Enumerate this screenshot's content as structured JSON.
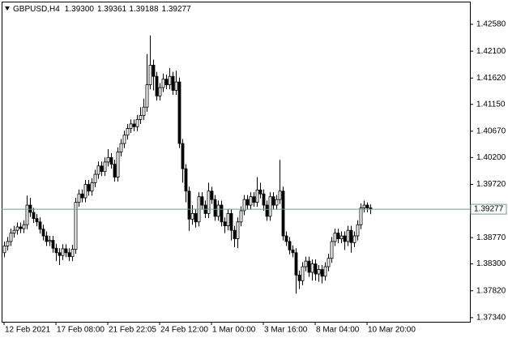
{
  "chart_data": {
    "type": "candlestick",
    "symbol": "GBPUSD,H4",
    "ohlc_labels": [
      "1.39300",
      "1.39361",
      "1.39188",
      "1.39277"
    ],
    "current_price": 1.39277,
    "current_price_color": "#7a9a8a",
    "bull_color": "#ffffff",
    "bear_color": "#000000",
    "wick_color": "#000000",
    "ylim": [
      1.37266,
      1.42985
    ],
    "yticks": [
      {
        "value": 1.4258,
        "label": "1.42580"
      },
      {
        "value": 1.421,
        "label": "1.42100"
      },
      {
        "value": 1.4162,
        "label": "1.41620"
      },
      {
        "value": 1.4115,
        "label": "1.41150"
      },
      {
        "value": 1.4067,
        "label": "1.40670"
      },
      {
        "value": 1.402,
        "label": "1.40200"
      },
      {
        "value": 1.3972,
        "label": "1.39720"
      },
      {
        "value": 1.3877,
        "label": "1.38770"
      },
      {
        "value": 1.383,
        "label": "1.38300"
      },
      {
        "value": 1.3782,
        "label": "1.37820"
      },
      {
        "value": 1.3734,
        "label": "1.37340"
      }
    ],
    "xlim": [
      -0.75,
      143.75
    ],
    "xticks": [
      {
        "value": 0,
        "label": "12 Feb 2021"
      },
      {
        "value": 16,
        "label": "17 Feb 08:00"
      },
      {
        "value": 32,
        "label": "21 Feb 22:05"
      },
      {
        "value": 48,
        "label": "24 Feb 12:00"
      },
      {
        "value": 64,
        "label": "1 Mar 00:00"
      },
      {
        "value": 80,
        "label": "3 Mar 16:00"
      },
      {
        "value": 96,
        "label": "8 Mar 04:00"
      },
      {
        "value": 112,
        "label": "10 Mar 20:00"
      }
    ],
    "open": [
      1.385,
      1.3862,
      1.387,
      1.3885,
      1.389,
      1.3896,
      1.3893,
      1.39,
      1.3935,
      1.3922,
      1.3911,
      1.3905,
      1.3892,
      1.388,
      1.387,
      1.3872,
      1.3858,
      1.385,
      1.3845,
      1.3857,
      1.385,
      1.3843,
      1.3856,
      1.394,
      1.3955,
      1.3948,
      1.3972,
      1.396,
      1.3975,
      1.399,
      1.4005,
      1.3995,
      1.4012,
      1.402,
      1.4008,
      1.3985,
      1.403,
      1.4045,
      1.406,
      1.4072,
      1.408,
      1.4075,
      1.4088,
      1.4095,
      1.411,
      1.415,
      1.4185,
      1.4165,
      1.413,
      1.4145,
      1.416,
      1.415,
      1.4165,
      1.414,
      1.4155,
      1.4045,
      1.4,
      1.396,
      1.391,
      1.392,
      1.3905,
      1.395,
      1.3935,
      1.392,
      1.396,
      1.3945,
      1.3915,
      1.3935,
      1.3905,
      1.3898,
      1.392,
      1.389,
      1.3875,
      1.3905,
      1.3925,
      1.3945,
      1.3935,
      1.395,
      1.394,
      1.3962,
      1.3955,
      1.3935,
      1.3915,
      1.395,
      1.3935,
      1.3945,
      1.396,
      1.388,
      1.387,
      1.3855,
      1.385,
      1.381,
      1.38,
      1.3825,
      1.3835,
      1.3815,
      1.383,
      1.3812,
      1.382,
      1.3808,
      1.3825,
      1.384,
      1.387,
      1.3885,
      1.3875,
      1.388,
      1.387,
      1.389,
      1.3868,
      1.388,
      1.39,
      1.393,
      1.3935,
      1.393
    ],
    "high": [
      1.387,
      1.3878,
      1.3893,
      1.3898,
      1.3904,
      1.3904,
      1.3908,
      1.3952,
      1.3948,
      1.393,
      1.3919,
      1.3913,
      1.39,
      1.3888,
      1.388,
      1.388,
      1.3866,
      1.3858,
      1.3865,
      1.3865,
      1.3858,
      1.3864,
      1.3948,
      1.3963,
      1.3963,
      1.398,
      1.398,
      1.3983,
      1.3998,
      1.4013,
      1.4013,
      1.402,
      1.4035,
      1.4028,
      1.4016,
      1.4038,
      1.4053,
      1.4068,
      1.408,
      1.4088,
      1.4088,
      1.4096,
      1.411,
      1.4125,
      1.4205,
      1.4238,
      1.4195,
      1.4173,
      1.4153,
      1.417,
      1.4168,
      1.418,
      1.4173,
      1.4175,
      1.4163,
      1.4053,
      1.4008,
      1.3968,
      1.3935,
      1.3928,
      1.3958,
      1.3958,
      1.3943,
      1.3975,
      1.3968,
      1.3953,
      1.3943,
      1.3943,
      1.3913,
      1.3928,
      1.3928,
      1.3898,
      1.3913,
      1.3933,
      1.3953,
      1.3953,
      1.3958,
      1.3958,
      1.3985,
      1.3975,
      1.3963,
      1.3943,
      1.3958,
      1.3958,
      1.3953,
      1.4016,
      1.3968,
      1.3888,
      1.3878,
      1.3863,
      1.3858,
      1.3818,
      1.3833,
      1.3843,
      1.3843,
      1.3838,
      1.3838,
      1.3828,
      1.3828,
      1.3833,
      1.3848,
      1.3878,
      1.3893,
      1.3893,
      1.3888,
      1.3888,
      1.3898,
      1.3898,
      1.3888,
      1.3908,
      1.3938,
      1.3943,
      1.394,
      1.39361
    ],
    "low": [
      1.3842,
      1.3854,
      1.3862,
      1.3877,
      1.3882,
      1.3885,
      1.3885,
      1.3892,
      1.3914,
      1.3903,
      1.3897,
      1.3884,
      1.3872,
      1.3862,
      1.3862,
      1.385,
      1.3835,
      1.3828,
      1.3837,
      1.3842,
      1.3835,
      1.3835,
      1.3848,
      1.3932,
      1.394,
      1.394,
      1.3952,
      1.3952,
      1.3967,
      1.3982,
      1.3987,
      1.3987,
      1.4004,
      1.4,
      1.3977,
      1.3977,
      1.4022,
      1.4037,
      1.4052,
      1.4064,
      1.4067,
      1.4067,
      1.408,
      1.4087,
      1.4102,
      1.4142,
      1.414,
      1.4122,
      1.4122,
      1.4137,
      1.4142,
      1.4142,
      1.4132,
      1.4132,
      1.4037,
      1.3975,
      1.394,
      1.3889,
      1.39,
      1.3895,
      1.3897,
      1.3927,
      1.3912,
      1.3912,
      1.3937,
      1.3907,
      1.3907,
      1.3897,
      1.3885,
      1.389,
      1.3872,
      1.386,
      1.3858,
      1.3897,
      1.3917,
      1.3927,
      1.3927,
      1.3932,
      1.3932,
      1.3947,
      1.3925,
      1.3907,
      1.3907,
      1.3927,
      1.3927,
      1.3937,
      1.3872,
      1.3862,
      1.3847,
      1.3842,
      1.3777,
      1.3785,
      1.3792,
      1.3817,
      1.3807,
      1.38,
      1.38,
      1.3798,
      1.3795,
      1.38,
      1.3817,
      1.3832,
      1.3862,
      1.3867,
      1.3867,
      1.3855,
      1.3862,
      1.385,
      1.386,
      1.3872,
      1.3892,
      1.3922,
      1.3922,
      1.39188
    ],
    "close": [
      1.3862,
      1.387,
      1.3885,
      1.389,
      1.3896,
      1.3893,
      1.39,
      1.3935,
      1.3922,
      1.3911,
      1.3905,
      1.3892,
      1.388,
      1.387,
      1.3872,
      1.3858,
      1.385,
      1.3845,
      1.3857,
      1.385,
      1.3843,
      1.3856,
      1.394,
      1.3955,
      1.3948,
      1.3972,
      1.396,
      1.3975,
      1.399,
      1.4005,
      1.3995,
      1.4012,
      1.402,
      1.4008,
      1.3985,
      1.403,
      1.4045,
      1.406,
      1.4072,
      1.408,
      1.4075,
      1.4088,
      1.4095,
      1.411,
      1.415,
      1.4185,
      1.4165,
      1.413,
      1.4145,
      1.416,
      1.415,
      1.4165,
      1.414,
      1.4155,
      1.4045,
      1.4,
      1.396,
      1.391,
      1.392,
      1.3905,
      1.395,
      1.3935,
      1.392,
      1.396,
      1.3945,
      1.3915,
      1.3935,
      1.3905,
      1.3898,
      1.392,
      1.389,
      1.3875,
      1.3905,
      1.3925,
      1.3945,
      1.3935,
      1.395,
      1.394,
      1.3962,
      1.3955,
      1.3935,
      1.3915,
      1.395,
      1.3935,
      1.3945,
      1.396,
      1.388,
      1.387,
      1.3855,
      1.385,
      1.381,
      1.38,
      1.3825,
      1.3835,
      1.3815,
      1.383,
      1.3812,
      1.382,
      1.3808,
      1.3825,
      1.384,
      1.387,
      1.3885,
      1.3875,
      1.388,
      1.387,
      1.389,
      1.3868,
      1.388,
      1.39,
      1.393,
      1.3935,
      1.393,
      1.39277
    ]
  }
}
